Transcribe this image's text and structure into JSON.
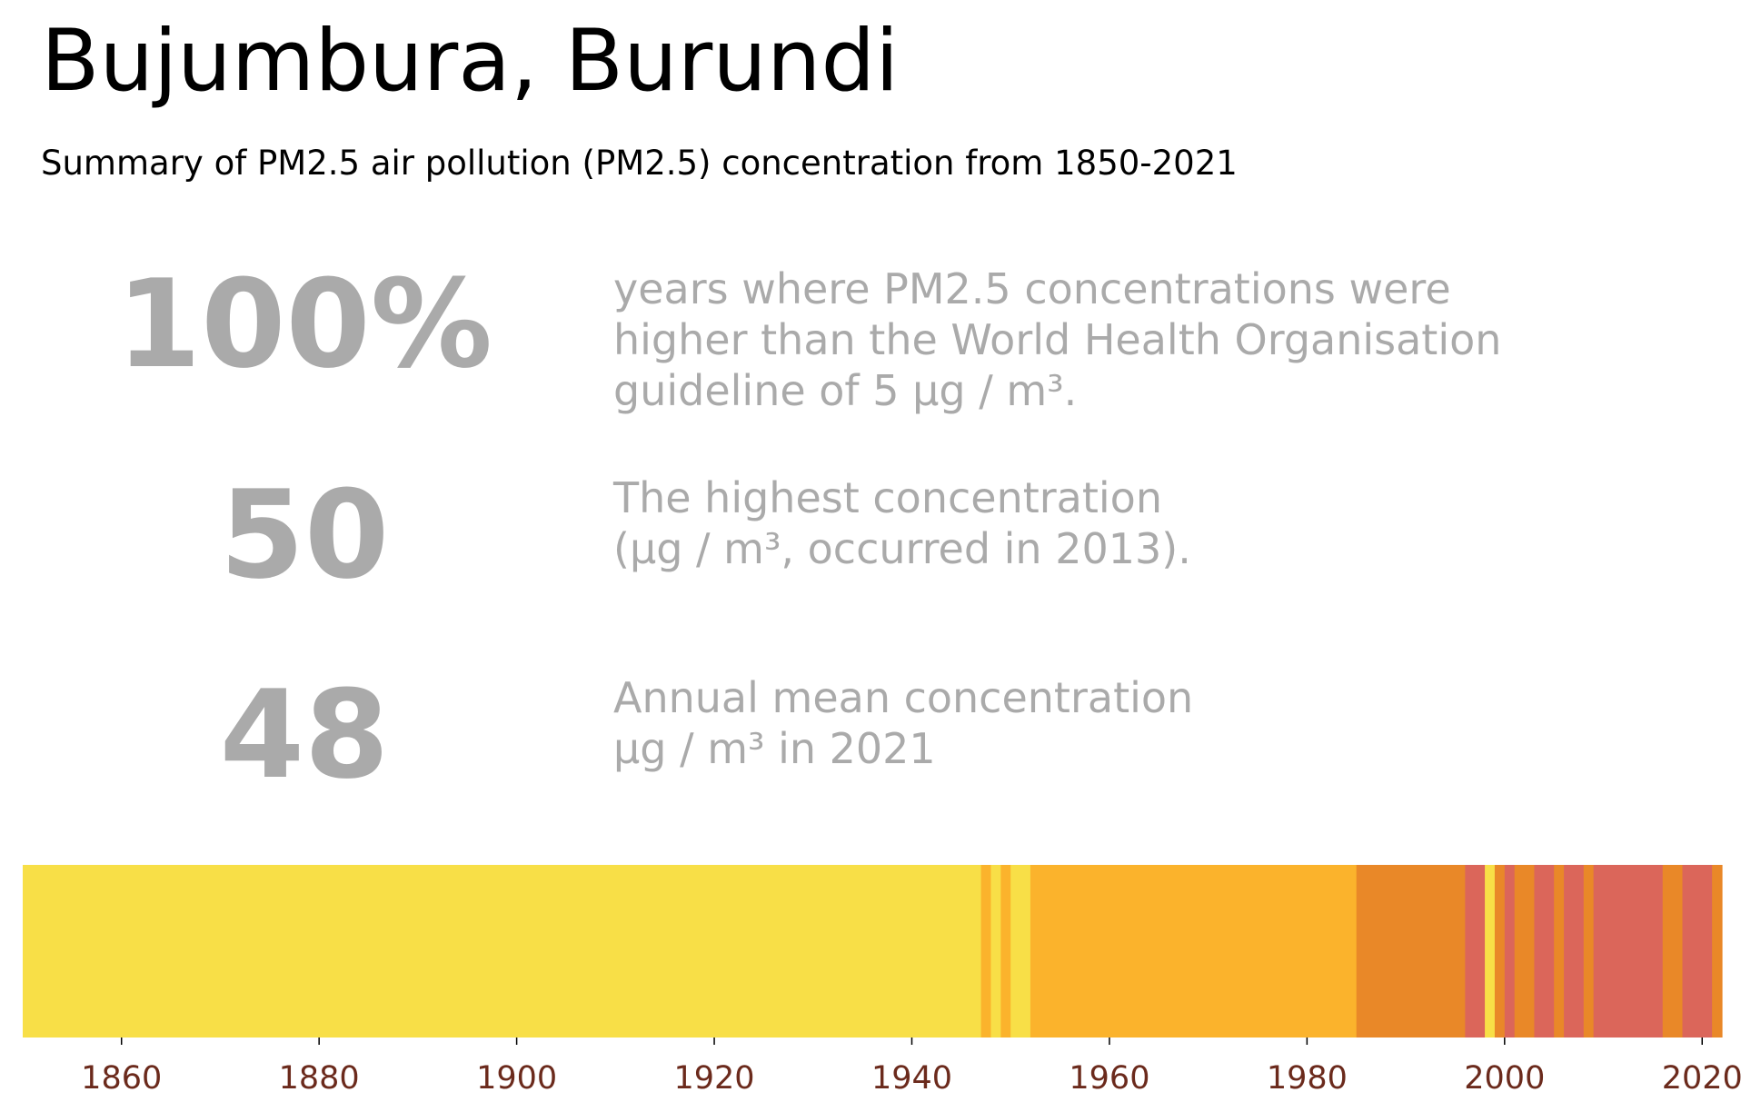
{
  "title": "Bujumbura, Burundi",
  "subtitle": "Summary of PM2.5 air pollution (PM2.5) concentration from 1850-2021",
  "stats": [
    {
      "value": "100%",
      "lines": [
        "years where PM2.5 concentrations were",
        "higher than the World Health Organisation",
        "guideline of 5 µg / m³."
      ]
    },
    {
      "value": "50",
      "lines": [
        "The highest concentration",
        "(µg / m³, occurred in 2013)."
      ]
    },
    {
      "value": "48",
      "lines": [
        "Annual mean concentration",
        "µg / m³ in 2021"
      ]
    }
  ],
  "chart_data": {
    "type": "heatmap",
    "title": "",
    "xlabel": "",
    "ylabel": "",
    "xlim": [
      1850,
      2022
    ],
    "x_ticks": [
      1860,
      1880,
      1900,
      1920,
      1940,
      1960,
      1980,
      2000,
      2020
    ],
    "colors": {
      "yellow": "#f8df47",
      "orange": "#fbb32c",
      "dark_orange": "#e98828",
      "red": "#db665a",
      "tick": "#6b2a1c"
    },
    "segments": [
      {
        "start": 1850,
        "end": 1947,
        "color": "yellow"
      },
      {
        "start": 1947,
        "end": 1948,
        "color": "orange"
      },
      {
        "start": 1948,
        "end": 1949,
        "color": "yellow"
      },
      {
        "start": 1949,
        "end": 1950,
        "color": "orange"
      },
      {
        "start": 1950,
        "end": 1952,
        "color": "yellow"
      },
      {
        "start": 1952,
        "end": 1985,
        "color": "orange"
      },
      {
        "start": 1985,
        "end": 1996,
        "color": "dark_orange"
      },
      {
        "start": 1996,
        "end": 1998,
        "color": "red"
      },
      {
        "start": 1998,
        "end": 1999,
        "color": "yellow"
      },
      {
        "start": 1999,
        "end": 2000,
        "color": "dark_orange"
      },
      {
        "start": 2000,
        "end": 2001,
        "color": "red"
      },
      {
        "start": 2001,
        "end": 2003,
        "color": "dark_orange"
      },
      {
        "start": 2003,
        "end": 2005,
        "color": "red"
      },
      {
        "start": 2005,
        "end": 2006,
        "color": "dark_orange"
      },
      {
        "start": 2006,
        "end": 2008,
        "color": "red"
      },
      {
        "start": 2008,
        "end": 2009,
        "color": "dark_orange"
      },
      {
        "start": 2009,
        "end": 2016,
        "color": "red"
      },
      {
        "start": 2016,
        "end": 2018,
        "color": "dark_orange"
      },
      {
        "start": 2018,
        "end": 2021,
        "color": "red"
      },
      {
        "start": 2021,
        "end": 2022,
        "color": "dark_orange"
      }
    ]
  }
}
